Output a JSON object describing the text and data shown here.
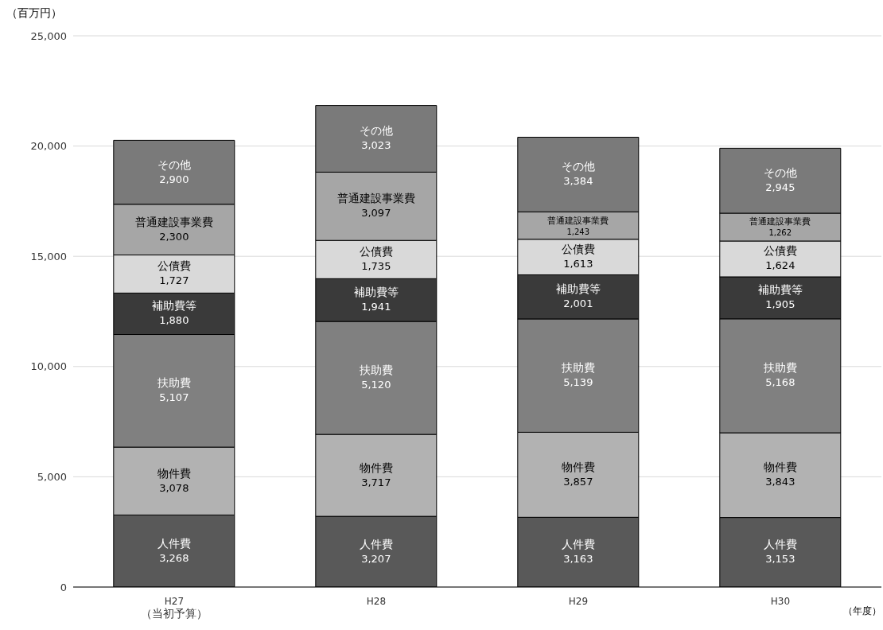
{
  "chart_data": {
    "type": "bar",
    "stacked": true,
    "xlabel": "（年度）",
    "ylabel": "（百万円）",
    "categories": [
      "H27\n（当初予算）",
      "H28",
      "H29",
      "H30"
    ],
    "series": [
      {
        "name": "人件費",
        "color": "#595959",
        "values": [
          3268,
          3207,
          3163,
          3153
        ],
        "value_labels": [
          "3,268",
          "3,207",
          "3,163",
          "3,153"
        ]
      },
      {
        "name": "物件費",
        "color": "#b2b2b2",
        "values": [
          3078,
          3717,
          3857,
          3843
        ],
        "value_labels": [
          "3,078",
          "3,717",
          "3,857",
          "3,843"
        ]
      },
      {
        "name": "扶助費",
        "color": "#808080",
        "values": [
          5107,
          5120,
          5139,
          5168
        ],
        "value_labels": [
          "5,107",
          "5,120",
          "5,139",
          "5,168"
        ]
      },
      {
        "name": "補助費等",
        "color": "#3a3a3a",
        "values": [
          1880,
          1941,
          2001,
          1905
        ],
        "value_labels": [
          "1,880",
          "1,941",
          "2,001",
          "1,905"
        ]
      },
      {
        "name": "公債費",
        "color": "#d9d9d9",
        "values": [
          1727,
          1735,
          1613,
          1624
        ],
        "value_labels": [
          "1,727",
          "1,735",
          "1,613",
          "1,624"
        ]
      },
      {
        "name": "普通建設事業費",
        "color": "#a6a6a6",
        "values": [
          2300,
          3097,
          1243,
          1262
        ],
        "value_labels": [
          "2,300",
          "3,097",
          "1,243",
          "1,262"
        ]
      },
      {
        "name": "その他",
        "color": "#7a7a7a",
        "values": [
          2900,
          3023,
          3384,
          2945
        ],
        "value_labels": [
          "2,900",
          "3,023",
          "3,384",
          "2,945"
        ]
      }
    ],
    "ylim": [
      0,
      25000
    ],
    "yticks": [
      0,
      {
        "value": 5000,
        "label": "5,000"
      },
      {
        "value": 10000,
        "label": "10,000"
      },
      {
        "value": 15000,
        "label": "15,000"
      },
      {
        "value": 20000,
        "label": "20,000"
      },
      {
        "value": 25000,
        "label": "25,000"
      }
    ],
    "grid": "y",
    "legend": false
  }
}
